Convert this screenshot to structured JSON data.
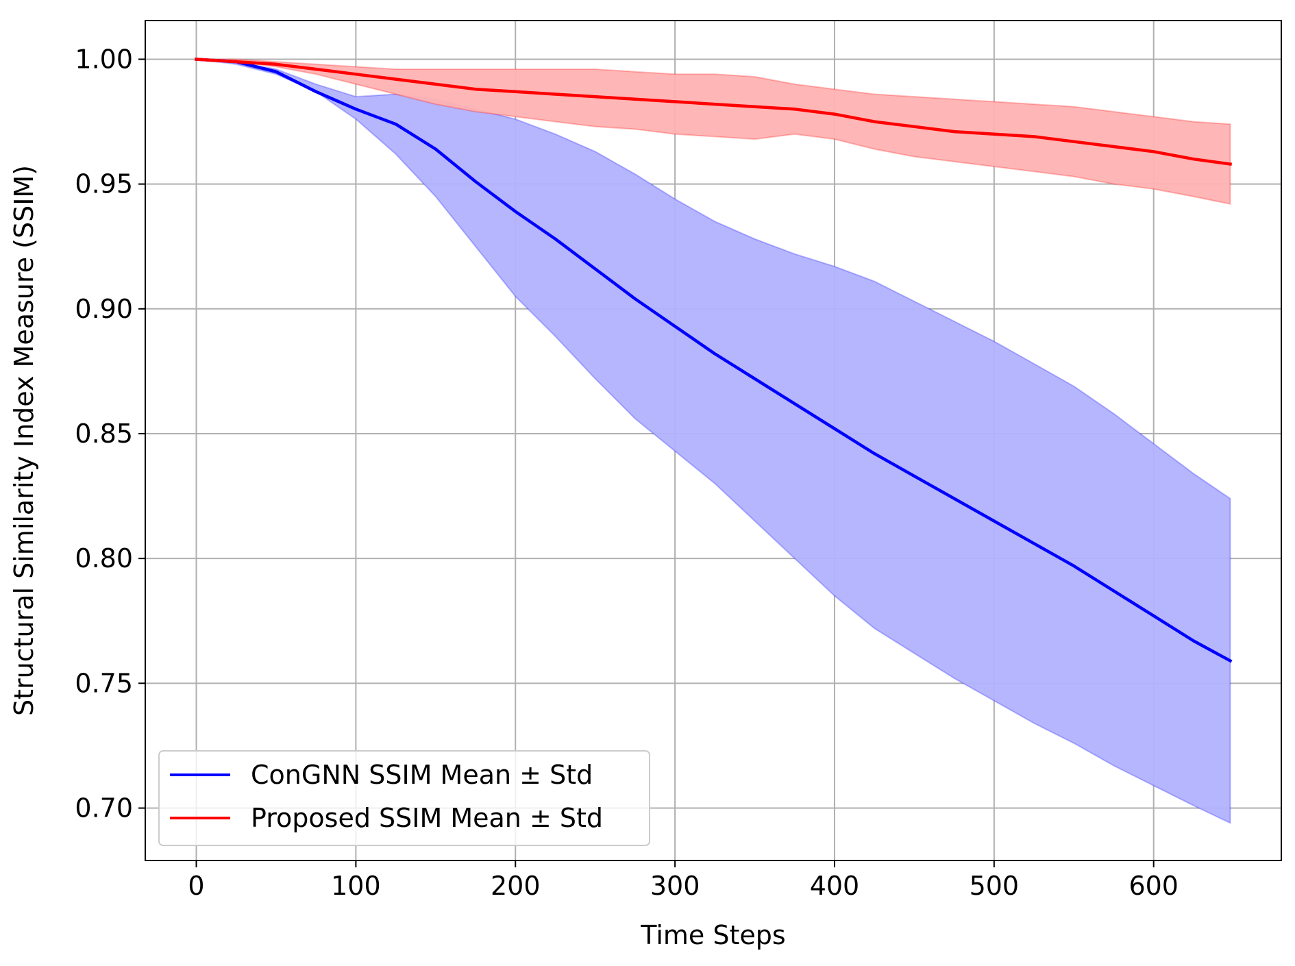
{
  "chart_data": {
    "type": "line",
    "title": "",
    "xlabel": "Time Steps",
    "ylabel": "Structural Similarity Index Measure (SSIM)",
    "xlim": [
      -32,
      680
    ],
    "ylim": [
      0.679,
      1.0155
    ],
    "xticks": [
      0,
      100,
      200,
      300,
      400,
      500,
      600
    ],
    "xtick_labels": [
      "0",
      "100",
      "200",
      "300",
      "400",
      "500",
      "600"
    ],
    "yticks": [
      0.7,
      0.75,
      0.8,
      0.85,
      0.9,
      0.95,
      1.0
    ],
    "ytick_labels": [
      "0.70",
      "0.75",
      "0.80",
      "0.85",
      "0.90",
      "0.95",
      "1.00"
    ],
    "grid": true,
    "legend_position": "lower-left",
    "series": [
      {
        "name": "ConGNN SSIM Mean ± Std",
        "color": "#0000ff",
        "band_color": "#b2b2ff",
        "x": [
          0,
          25,
          50,
          75,
          100,
          125,
          150,
          175,
          200,
          225,
          250,
          275,
          300,
          325,
          350,
          375,
          400,
          425,
          450,
          475,
          500,
          525,
          550,
          575,
          600,
          625,
          648
        ],
        "mean": [
          1.0,
          0.999,
          0.995,
          0.987,
          0.98,
          0.974,
          0.964,
          0.951,
          0.939,
          0.928,
          0.916,
          0.904,
          0.893,
          0.882,
          0.872,
          0.862,
          0.852,
          0.842,
          0.833,
          0.824,
          0.815,
          0.806,
          0.797,
          0.787,
          0.777,
          0.767,
          0.759
        ],
        "upper": [
          1.0,
          0.999,
          0.996,
          0.99,
          0.985,
          0.986,
          0.984,
          0.98,
          0.976,
          0.97,
          0.963,
          0.954,
          0.944,
          0.935,
          0.928,
          0.922,
          0.917,
          0.911,
          0.903,
          0.895,
          0.887,
          0.878,
          0.869,
          0.858,
          0.846,
          0.834,
          0.824
        ],
        "lower": [
          1.0,
          0.998,
          0.994,
          0.987,
          0.976,
          0.962,
          0.945,
          0.925,
          0.905,
          0.889,
          0.872,
          0.856,
          0.843,
          0.83,
          0.815,
          0.8,
          0.785,
          0.772,
          0.762,
          0.752,
          0.743,
          0.734,
          0.726,
          0.717,
          0.709,
          0.701,
          0.694
        ]
      },
      {
        "name": "Proposed SSIM Mean ± Std",
        "color": "#ff0000",
        "band_color": "#ffb2b2",
        "x": [
          0,
          25,
          50,
          75,
          100,
          125,
          150,
          175,
          200,
          225,
          250,
          275,
          300,
          325,
          350,
          375,
          400,
          425,
          450,
          475,
          500,
          525,
          550,
          575,
          600,
          625,
          648
        ],
        "mean": [
          1.0,
          0.999,
          0.998,
          0.996,
          0.994,
          0.992,
          0.99,
          0.988,
          0.987,
          0.986,
          0.985,
          0.984,
          0.983,
          0.982,
          0.981,
          0.98,
          0.978,
          0.975,
          0.973,
          0.971,
          0.97,
          0.969,
          0.967,
          0.965,
          0.963,
          0.96,
          0.958
        ],
        "upper": [
          1.0,
          1.0,
          0.999,
          0.998,
          0.997,
          0.996,
          0.996,
          0.996,
          0.996,
          0.996,
          0.996,
          0.995,
          0.994,
          0.994,
          0.993,
          0.99,
          0.988,
          0.986,
          0.985,
          0.984,
          0.983,
          0.982,
          0.981,
          0.979,
          0.977,
          0.975,
          0.974
        ],
        "lower": [
          1.0,
          0.999,
          0.997,
          0.994,
          0.99,
          0.986,
          0.982,
          0.979,
          0.977,
          0.975,
          0.973,
          0.972,
          0.97,
          0.969,
          0.968,
          0.97,
          0.968,
          0.964,
          0.961,
          0.959,
          0.957,
          0.955,
          0.953,
          0.95,
          0.948,
          0.945,
          0.942
        ]
      }
    ]
  }
}
